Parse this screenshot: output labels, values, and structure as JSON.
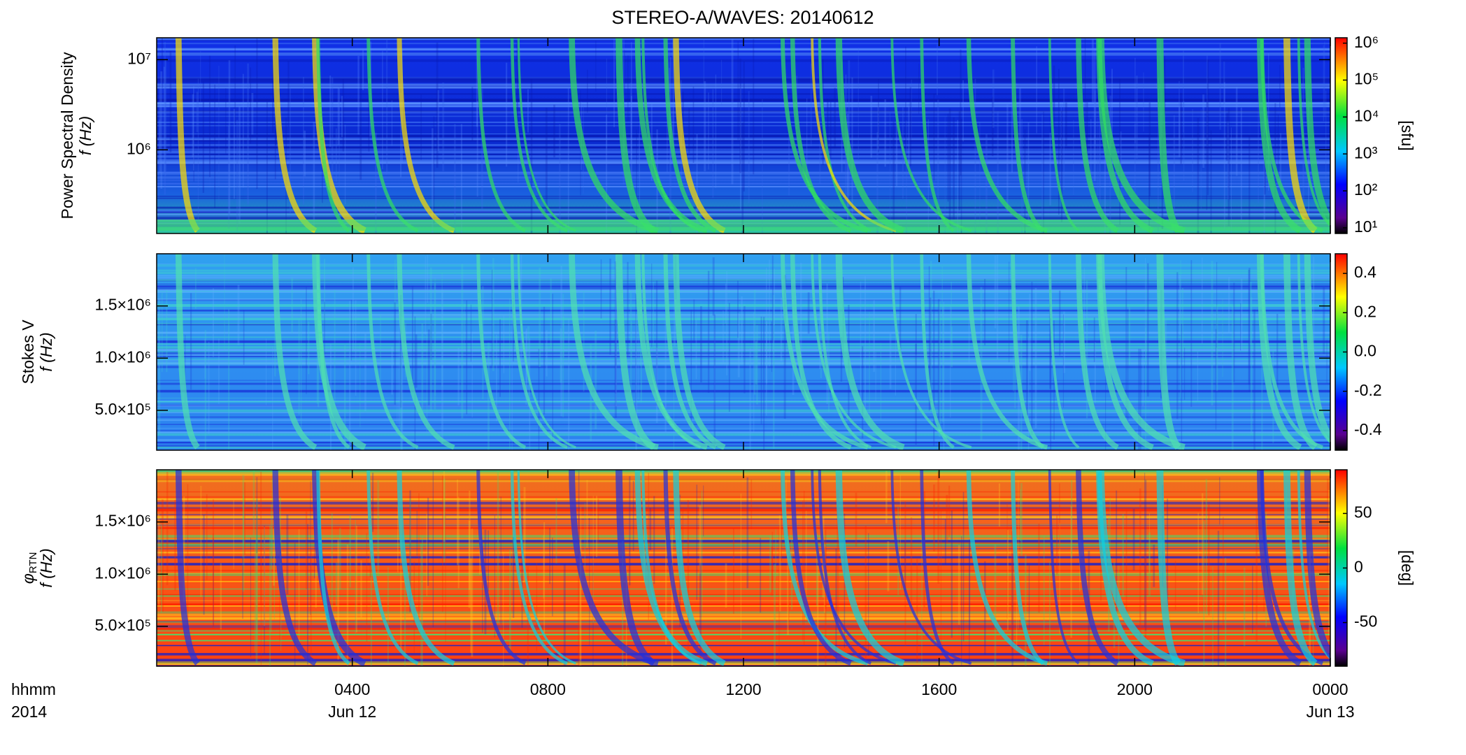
{
  "chart_data": [
    {
      "type": "spectrogram",
      "title": "STEREO-A/WAVES: 20140612",
      "ylabel": "Power Spectral Density",
      "ylabel2": "f (Hz)",
      "ylog": true,
      "ylim": [
        118000,
        17500000
      ],
      "yticks": [
        {
          "value": 1000000,
          "label": "10⁶"
        },
        {
          "value": 10000000,
          "label": "10⁷"
        }
      ],
      "xlim": [
        0,
        24
      ],
      "xticks": [
        {
          "value": 4,
          "label": "0400"
        },
        {
          "value": 8,
          "label": "0800"
        },
        {
          "value": 12,
          "label": "1200"
        },
        {
          "value": 16,
          "label": "1600"
        },
        {
          "value": 20,
          "label": "2000"
        },
        {
          "value": 24,
          "label": "0000"
        }
      ],
      "xtick_dates": [
        {
          "value": 4,
          "label": "Jun 12"
        },
        {
          "value": 24,
          "label": "Jun 13"
        }
      ],
      "xlabel": [
        "hhmm",
        "2014"
      ],
      "colormap": "rainbow",
      "clog": true,
      "clim": [
        7,
        1400000
      ],
      "cticks": [
        {
          "value": 10,
          "label": "10¹"
        },
        {
          "value": 100,
          "label": "10²"
        },
        {
          "value": 1000,
          "label": "10³"
        },
        {
          "value": 10000,
          "label": "10⁴"
        },
        {
          "value": 100000,
          "label": "10⁵"
        },
        {
          "value": 1000000,
          "label": "10⁶"
        }
      ],
      "clabel": "[sfu]"
    },
    {
      "type": "spectrogram",
      "ylabel": "Stokes V",
      "ylabel2": "f (Hz)",
      "ylog": false,
      "ylim": [
        118000,
        2000000
      ],
      "yticks": [
        {
          "value": 500000,
          "label": "5.0×10⁵"
        },
        {
          "value": 1000000,
          "label": "1.0×10⁶"
        },
        {
          "value": 1500000,
          "label": "1.5×10⁶"
        }
      ],
      "colormap": "rainbow",
      "clog": false,
      "clim": [
        -0.5,
        0.5
      ],
      "cticks": [
        -0.4,
        -0.2,
        {
          "value": 0,
          "label": "0.0"
        },
        0.2,
        0.4
      ]
    },
    {
      "type": "spectrogram",
      "ylabel": "φ",
      "ylabel_sub": "RTN",
      "ylabel2": "f (Hz)",
      "ylog": false,
      "ylim": [
        118000,
        2000000
      ],
      "yticks": [
        {
          "value": 500000,
          "label": "5.0×10⁵"
        },
        {
          "value": 1000000,
          "label": "1.0×10⁶"
        },
        {
          "value": 1500000,
          "label": "1.5×10⁶"
        }
      ],
      "colormap": "rainbow",
      "clog": false,
      "clim": [
        -90,
        90
      ],
      "cticks": [
        -50,
        0,
        50
      ],
      "clabel": "[deg]"
    }
  ]
}
